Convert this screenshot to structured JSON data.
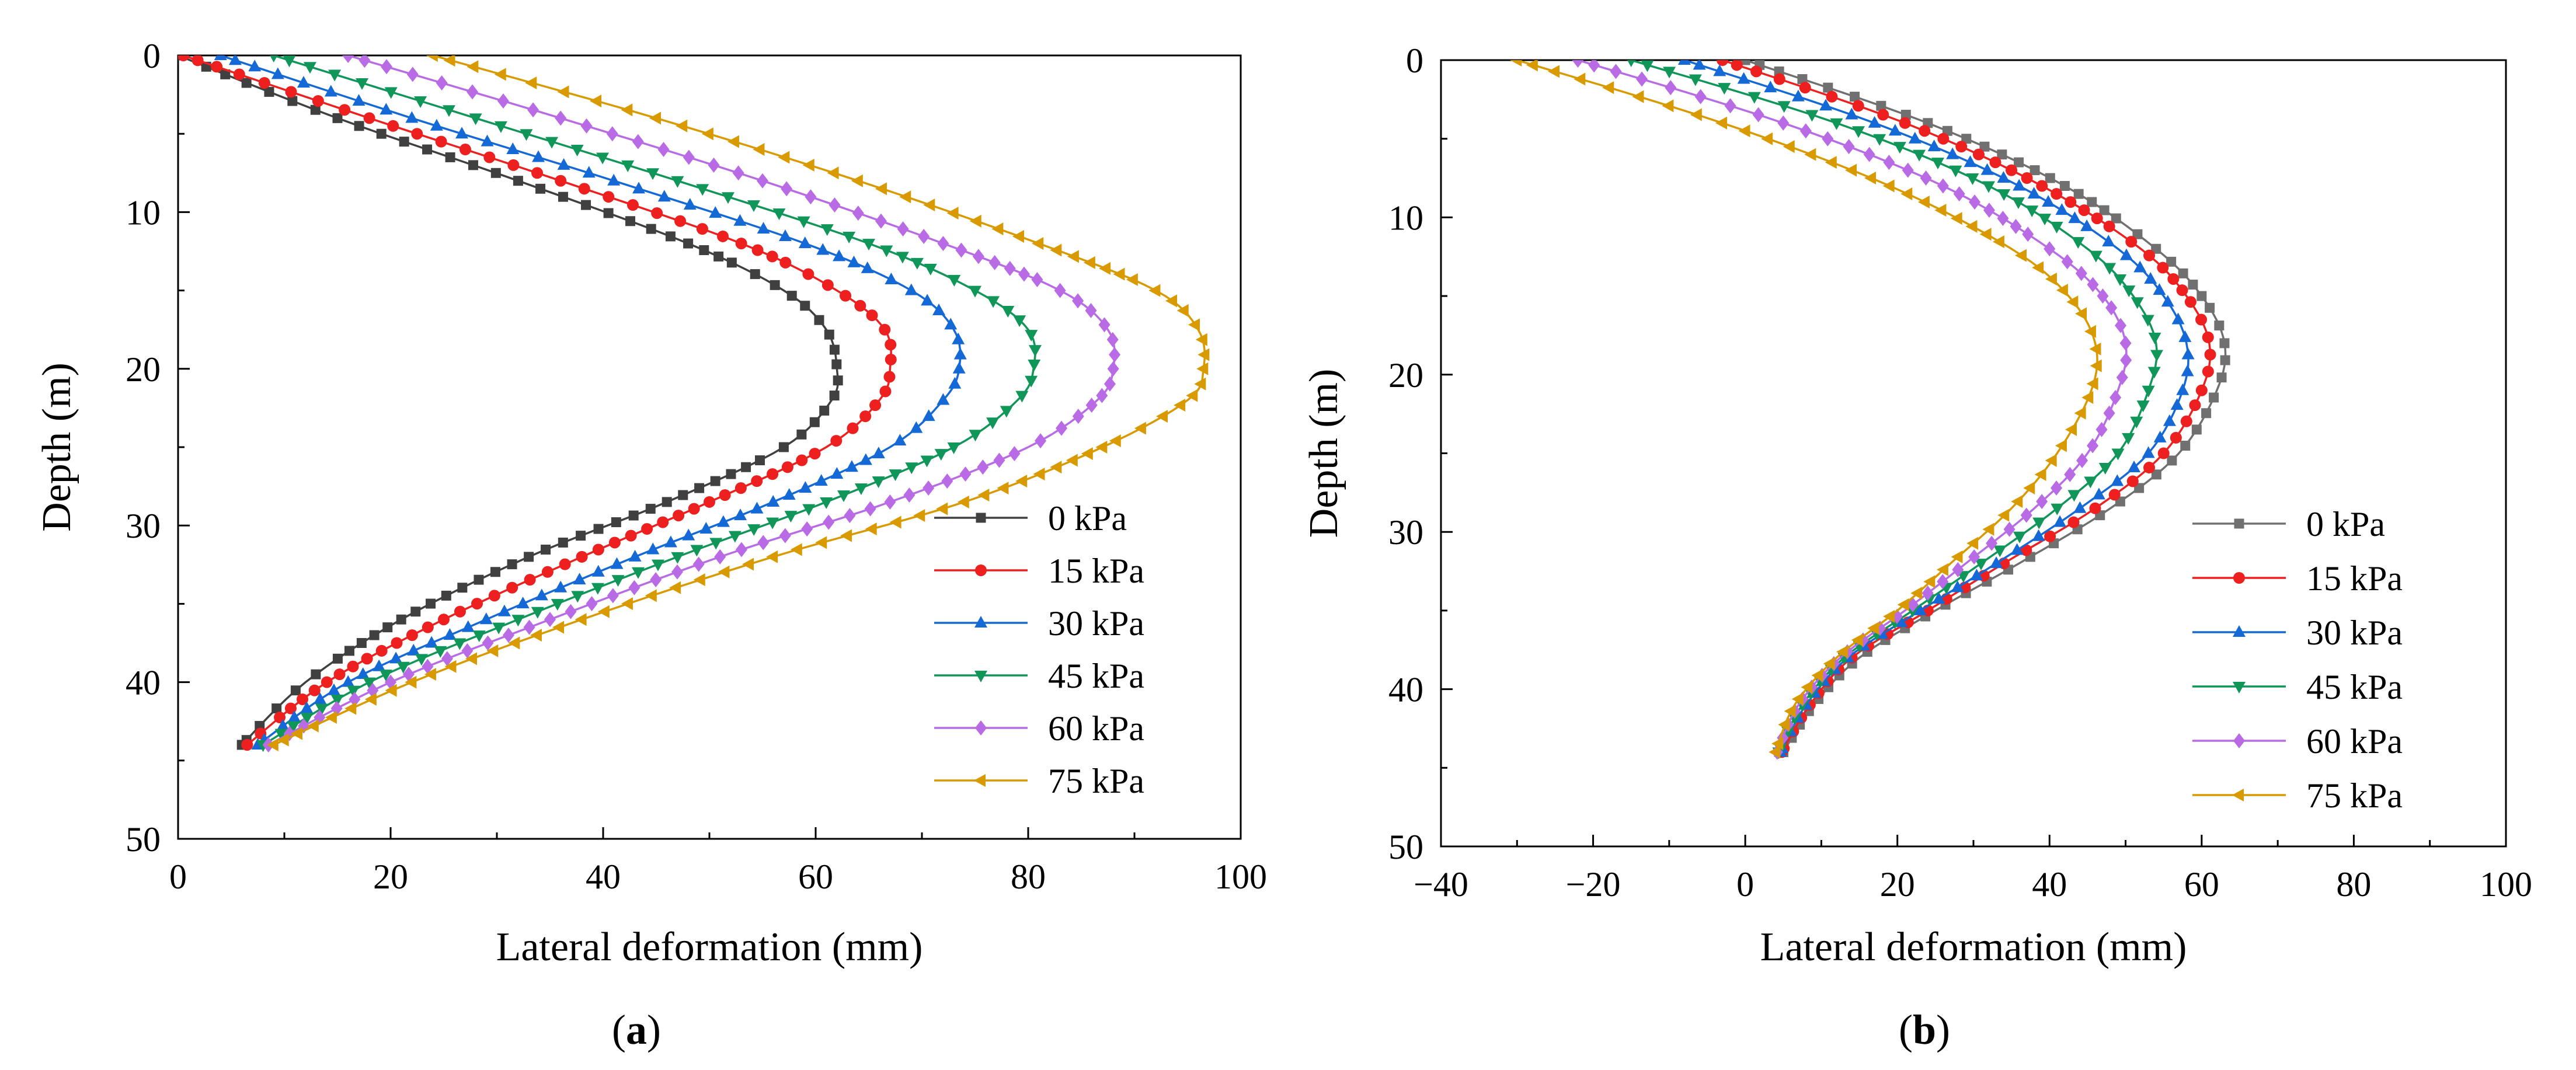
{
  "figure": {
    "panels": [
      {
        "label_prefix": "(",
        "label_letter": "a",
        "label_suffix": ")"
      },
      {
        "label_prefix": "(",
        "label_letter": "b",
        "label_suffix": ")"
      }
    ]
  },
  "chart_data": [
    {
      "type": "line",
      "panel": "a",
      "xlabel": "Lateral deformation (mm)",
      "ylabel": "Depth (m)",
      "xlim": [
        0,
        100
      ],
      "ylim": [
        0,
        50
      ],
      "y_inverted": true,
      "x_ticks": [
        0,
        20,
        40,
        60,
        80,
        100
      ],
      "y_ticks": [
        0,
        10,
        20,
        30,
        40,
        50
      ],
      "legend_position": "bottom-right",
      "series": [
        {
          "name": "0 kPa",
          "color": "#404040",
          "marker": "square",
          "x": [
            0,
            15,
            32,
            48,
            57,
            61,
            62,
            61.5,
            57,
            46,
            33,
            21,
            12,
            6
          ],
          "y": [
            0,
            4,
            8,
            12,
            15,
            17.5,
            20,
            22,
            25,
            28.5,
            32,
            36,
            40,
            44
          ]
        },
        {
          "name": "15 kPa",
          "color": "#ee1f1f",
          "marker": "circle",
          "x": [
            0.5,
            18,
            36,
            53,
            62,
            66.5,
            67,
            66,
            61,
            50,
            38,
            25,
            14,
            6.5
          ],
          "y": [
            0,
            4,
            8,
            12,
            15,
            17.5,
            20,
            22,
            25,
            28.5,
            32,
            36,
            40,
            44
          ]
        },
        {
          "name": "30 kPa",
          "color": "#1469d6",
          "marker": "triangle-up",
          "x": [
            4,
            22,
            41,
            59,
            69,
            73,
            73.5,
            72,
            67,
            56,
            43,
            29,
            16,
            7.5
          ],
          "y": [
            0,
            4,
            8,
            12,
            15,
            17.5,
            20,
            22,
            25,
            28.5,
            32,
            36,
            40,
            44
          ]
        },
        {
          "name": "45 kPa",
          "color": "#109659",
          "marker": "triangle-down",
          "x": [
            9,
            28,
            47,
            65,
            75,
            80,
            80.5,
            79,
            73,
            61,
            47,
            32,
            18,
            8
          ],
          "y": [
            0,
            4,
            8,
            12,
            15,
            17.5,
            20,
            22,
            25,
            28.5,
            32,
            36,
            40,
            44
          ]
        },
        {
          "name": "60 kPa",
          "color": "#b96be6",
          "marker": "diamond",
          "x": [
            16,
            36,
            55,
            72,
            83,
            87.5,
            88,
            86.5,
            80,
            67,
            51,
            35,
            20,
            8.5
          ],
          "y": [
            0,
            4,
            8,
            12,
            15,
            17.5,
            20,
            22,
            25,
            28.5,
            32,
            36,
            40,
            44
          ]
        },
        {
          "name": "75 kPa",
          "color": "#d99a00",
          "marker": "triangle-left",
          "x": [
            24,
            45,
            64,
            81,
            92,
            96,
            96.5,
            95,
            87,
            74,
            56,
            38,
            22,
            9
          ],
          "y": [
            0,
            4,
            8,
            12,
            15,
            17.5,
            20,
            22,
            25,
            28.5,
            32,
            36,
            40,
            44
          ]
        }
      ]
    },
    {
      "type": "line",
      "panel": "b",
      "xlabel": "Lateral deformation (mm)",
      "ylabel": "Depth (m)",
      "xlim": [
        -40,
        100
      ],
      "ylim": [
        0,
        50
      ],
      "y_inverted": true,
      "x_ticks": [
        -40,
        -20,
        0,
        20,
        40,
        60,
        80,
        100
      ],
      "x_tick_labels": [
        "−40",
        "−20",
        "0",
        "20",
        "40",
        "60",
        "80",
        "100"
      ],
      "y_ticks": [
        0,
        10,
        20,
        30,
        40,
        50
      ],
      "legend_position": "bottom-right",
      "series": [
        {
          "name": "0 kPa",
          "color": "#707070",
          "marker": "square",
          "x": [
            0,
            24,
            42,
            54,
            60,
            63,
            62,
            57,
            48,
            36,
            25,
            15,
            9,
            5
          ],
          "y": [
            0,
            4,
            8,
            12,
            15,
            18,
            21,
            25,
            28.5,
            32,
            35,
            38,
            41,
            44
          ]
        },
        {
          "name": "15 kPa",
          "color": "#ee1f1f",
          "marker": "circle",
          "x": [
            -3,
            21,
            39,
            52,
            58,
            61,
            60,
            55,
            46,
            34,
            24,
            14,
            8.5,
            4.8
          ],
          "y": [
            0,
            4,
            8,
            12,
            15,
            18,
            21,
            25,
            28.5,
            32,
            35,
            38,
            41,
            44
          ]
        },
        {
          "name": "30 kPa",
          "color": "#1469d6",
          "marker": "triangle-up",
          "x": [
            -8,
            17,
            36,
            49,
            55,
            58,
            57.5,
            53,
            44,
            33,
            23,
            13.5,
            8,
            4.6
          ],
          "y": [
            0,
            4,
            8,
            12,
            15,
            18,
            21,
            25,
            28.5,
            32,
            35,
            38,
            41,
            44
          ]
        },
        {
          "name": "45 kPa",
          "color": "#109659",
          "marker": "triangle-down",
          "x": [
            -15,
            12,
            32,
            45,
            51,
            54,
            53,
            49,
            41,
            31,
            22,
            13,
            7.5,
            4.4
          ],
          "y": [
            0,
            4,
            8,
            12,
            15,
            18,
            21,
            25,
            28.5,
            32,
            35,
            38,
            41,
            44
          ]
        },
        {
          "name": "60 kPa",
          "color": "#b96be6",
          "marker": "diamond",
          "x": [
            -22,
            5,
            26,
            40,
            47,
            50,
            49,
            45,
            38,
            29,
            21,
            12.5,
            7,
            4.2
          ],
          "y": [
            0,
            4,
            8,
            12,
            15,
            18,
            21,
            25,
            28.5,
            32,
            35,
            38,
            41,
            44
          ]
        },
        {
          "name": "75 kPa",
          "color": "#d99a00",
          "marker": "triangle-left",
          "x": [
            -30,
            -3,
            19,
            35,
            42.5,
            46,
            45.5,
            41,
            35,
            27,
            20,
            12,
            6.5,
            4
          ],
          "y": [
            0,
            4,
            8,
            12,
            15,
            18,
            21,
            25,
            28.5,
            32,
            35,
            38,
            41,
            44
          ]
        }
      ]
    }
  ]
}
